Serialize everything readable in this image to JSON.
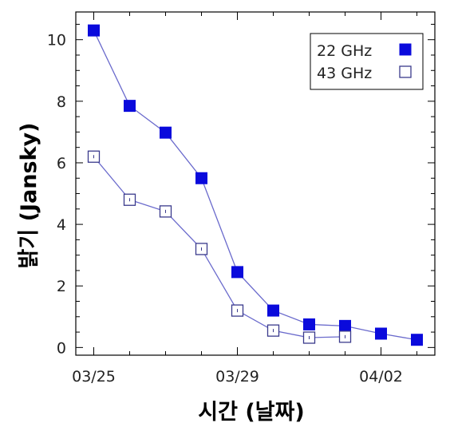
{
  "chart_data": {
    "type": "line",
    "xlabel": "시간 (날짜)",
    "ylabel": "밝기 (Jansky)",
    "x_ticks": [
      {
        "value": 0,
        "label": "03/25"
      },
      {
        "value": 4,
        "label": "03/29"
      },
      {
        "value": 8,
        "label": "04/02"
      }
    ],
    "y_ticks": [
      0,
      2,
      4,
      6,
      8,
      10
    ],
    "xlim": [
      -0.5,
      9.5
    ],
    "ylim": [
      -0.25,
      10.9
    ],
    "grid": false,
    "legend_position": "top-right",
    "series": [
      {
        "name": "22 GHz",
        "marker": "filled-square",
        "color": "#0a0adc",
        "x": [
          0,
          1,
          2,
          3,
          4,
          5,
          6,
          7,
          8,
          9
        ],
        "y": [
          10.3,
          7.85,
          6.98,
          5.5,
          2.45,
          1.2,
          0.75,
          0.7,
          0.45,
          0.25
        ]
      },
      {
        "name": "43 GHz",
        "marker": "open-square",
        "color": "#3a3a8c",
        "x": [
          0,
          1,
          2,
          3,
          4,
          5,
          6,
          7
        ],
        "y": [
          6.2,
          4.8,
          4.42,
          3.2,
          1.2,
          0.55,
          0.32,
          0.35
        ]
      }
    ],
    "line_color": "#6a6acc"
  }
}
